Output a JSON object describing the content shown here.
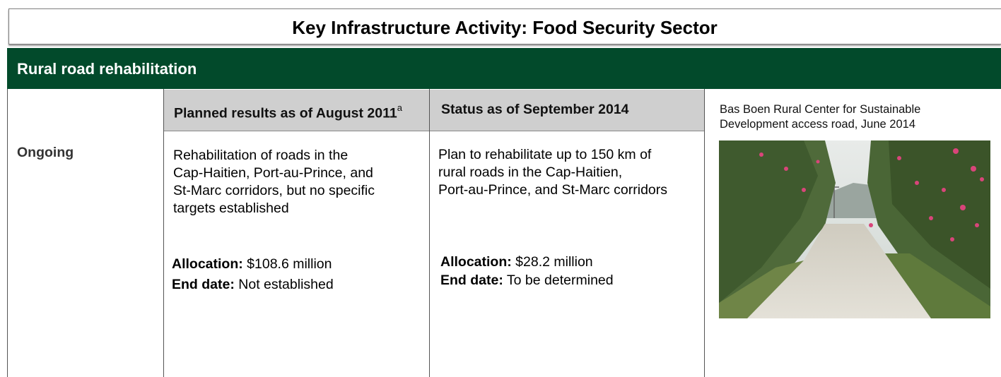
{
  "title": "Key Infrastructure Activity: Food Security Sector",
  "section": {
    "title": "Rural road rehabilitation",
    "status": "Ongoing",
    "columns": [
      {
        "header": "Planned results as of August 2011",
        "header_note": "a",
        "description_lines": [
          "Rehabilitation of roads in the",
          "Cap-Haitien, Port-au-Prince, and",
          "St-Marc corridors, but no specific",
          "targets established"
        ],
        "allocation": {
          "label": "Allocation:",
          "value": "$108.6 million"
        },
        "end_date": {
          "label": "End date:",
          "value": "Not established"
        }
      },
      {
        "header": "Status as of September 2014",
        "description_lines": [
          "Plan to rehabilitate up to 150 km of",
          "rural roads in the Cap-Haitien,",
          "Port-au-Prince, and St-Marc corridors"
        ],
        "allocation": {
          "label": "Allocation:",
          "value": "$28.2 million"
        },
        "end_date": {
          "label": "End date:",
          "value": "To be determined"
        }
      }
    ],
    "photo": {
      "caption_lines": [
        "Bas Boen Rural Center for Sustainable",
        "Development access road, June 2014"
      ]
    }
  }
}
